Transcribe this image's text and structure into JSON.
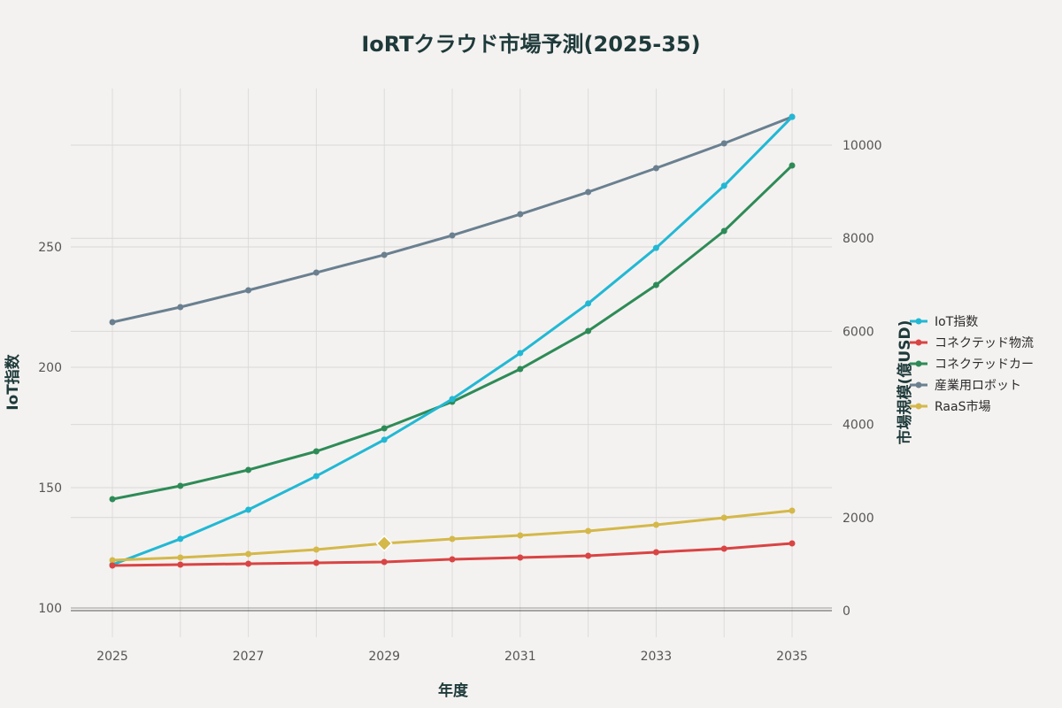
{
  "chart_data": {
    "type": "line",
    "title": "IoRTクラウド市場予測(2025-35)",
    "xlabel": "年度",
    "ylabel": "IoT指数",
    "y2label": "市場規模(億USD)",
    "x": [
      2025,
      2026,
      2027,
      2028,
      2029,
      2030,
      2031,
      2032,
      2033,
      2034,
      2035
    ],
    "x_ticks": [
      "2025",
      "2027",
      "2029",
      "2031",
      "2033",
      "2035"
    ],
    "y_ticks": [
      "100",
      "150",
      "200",
      "250"
    ],
    "y2_ticks": [
      "0",
      "2000",
      "4000",
      "6000",
      "8000",
      "10000"
    ],
    "ylim": [
      98,
      310
    ],
    "y2lim": [
      0,
      10900
    ],
    "grid": true,
    "legend_position": "right",
    "series": [
      {
        "name": "IoT指数",
        "axis": "left",
        "color": "#22b8d4",
        "values": [
          118,
          128.7,
          140.8,
          154.8,
          169.9,
          186.8,
          205.9,
          226.5,
          249.6,
          275.4,
          304
        ]
      },
      {
        "name": "コネクテッド物流",
        "axis": "right",
        "color": "#d94444",
        "values": [
          970,
          989,
          1008,
          1027,
          1046,
          1103,
          1141,
          1179,
          1255,
          1331,
          1445
        ]
      },
      {
        "name": "コネクテッドカー",
        "axis": "right",
        "color": "#2e8b57",
        "values": [
          2395,
          2681,
          3023,
          3422,
          3916,
          4487,
          5190,
          6008,
          6996,
          8156,
          9563
        ]
      },
      {
        "name": "産業用ロボット",
        "axis": "right",
        "color": "#6a8090",
        "values": [
          6198,
          6521,
          6882,
          7262,
          7643,
          8061,
          8517,
          8992,
          9506,
          10038,
          10608
        ]
      },
      {
        "name": "RaaS市場",
        "axis": "right",
        "color": "#d4b84a",
        "values": [
          1084,
          1141,
          1217,
          1312,
          1445,
          1540,
          1616,
          1711,
          1844,
          1996,
          2148
        ],
        "highlight_index": 4
      }
    ]
  }
}
